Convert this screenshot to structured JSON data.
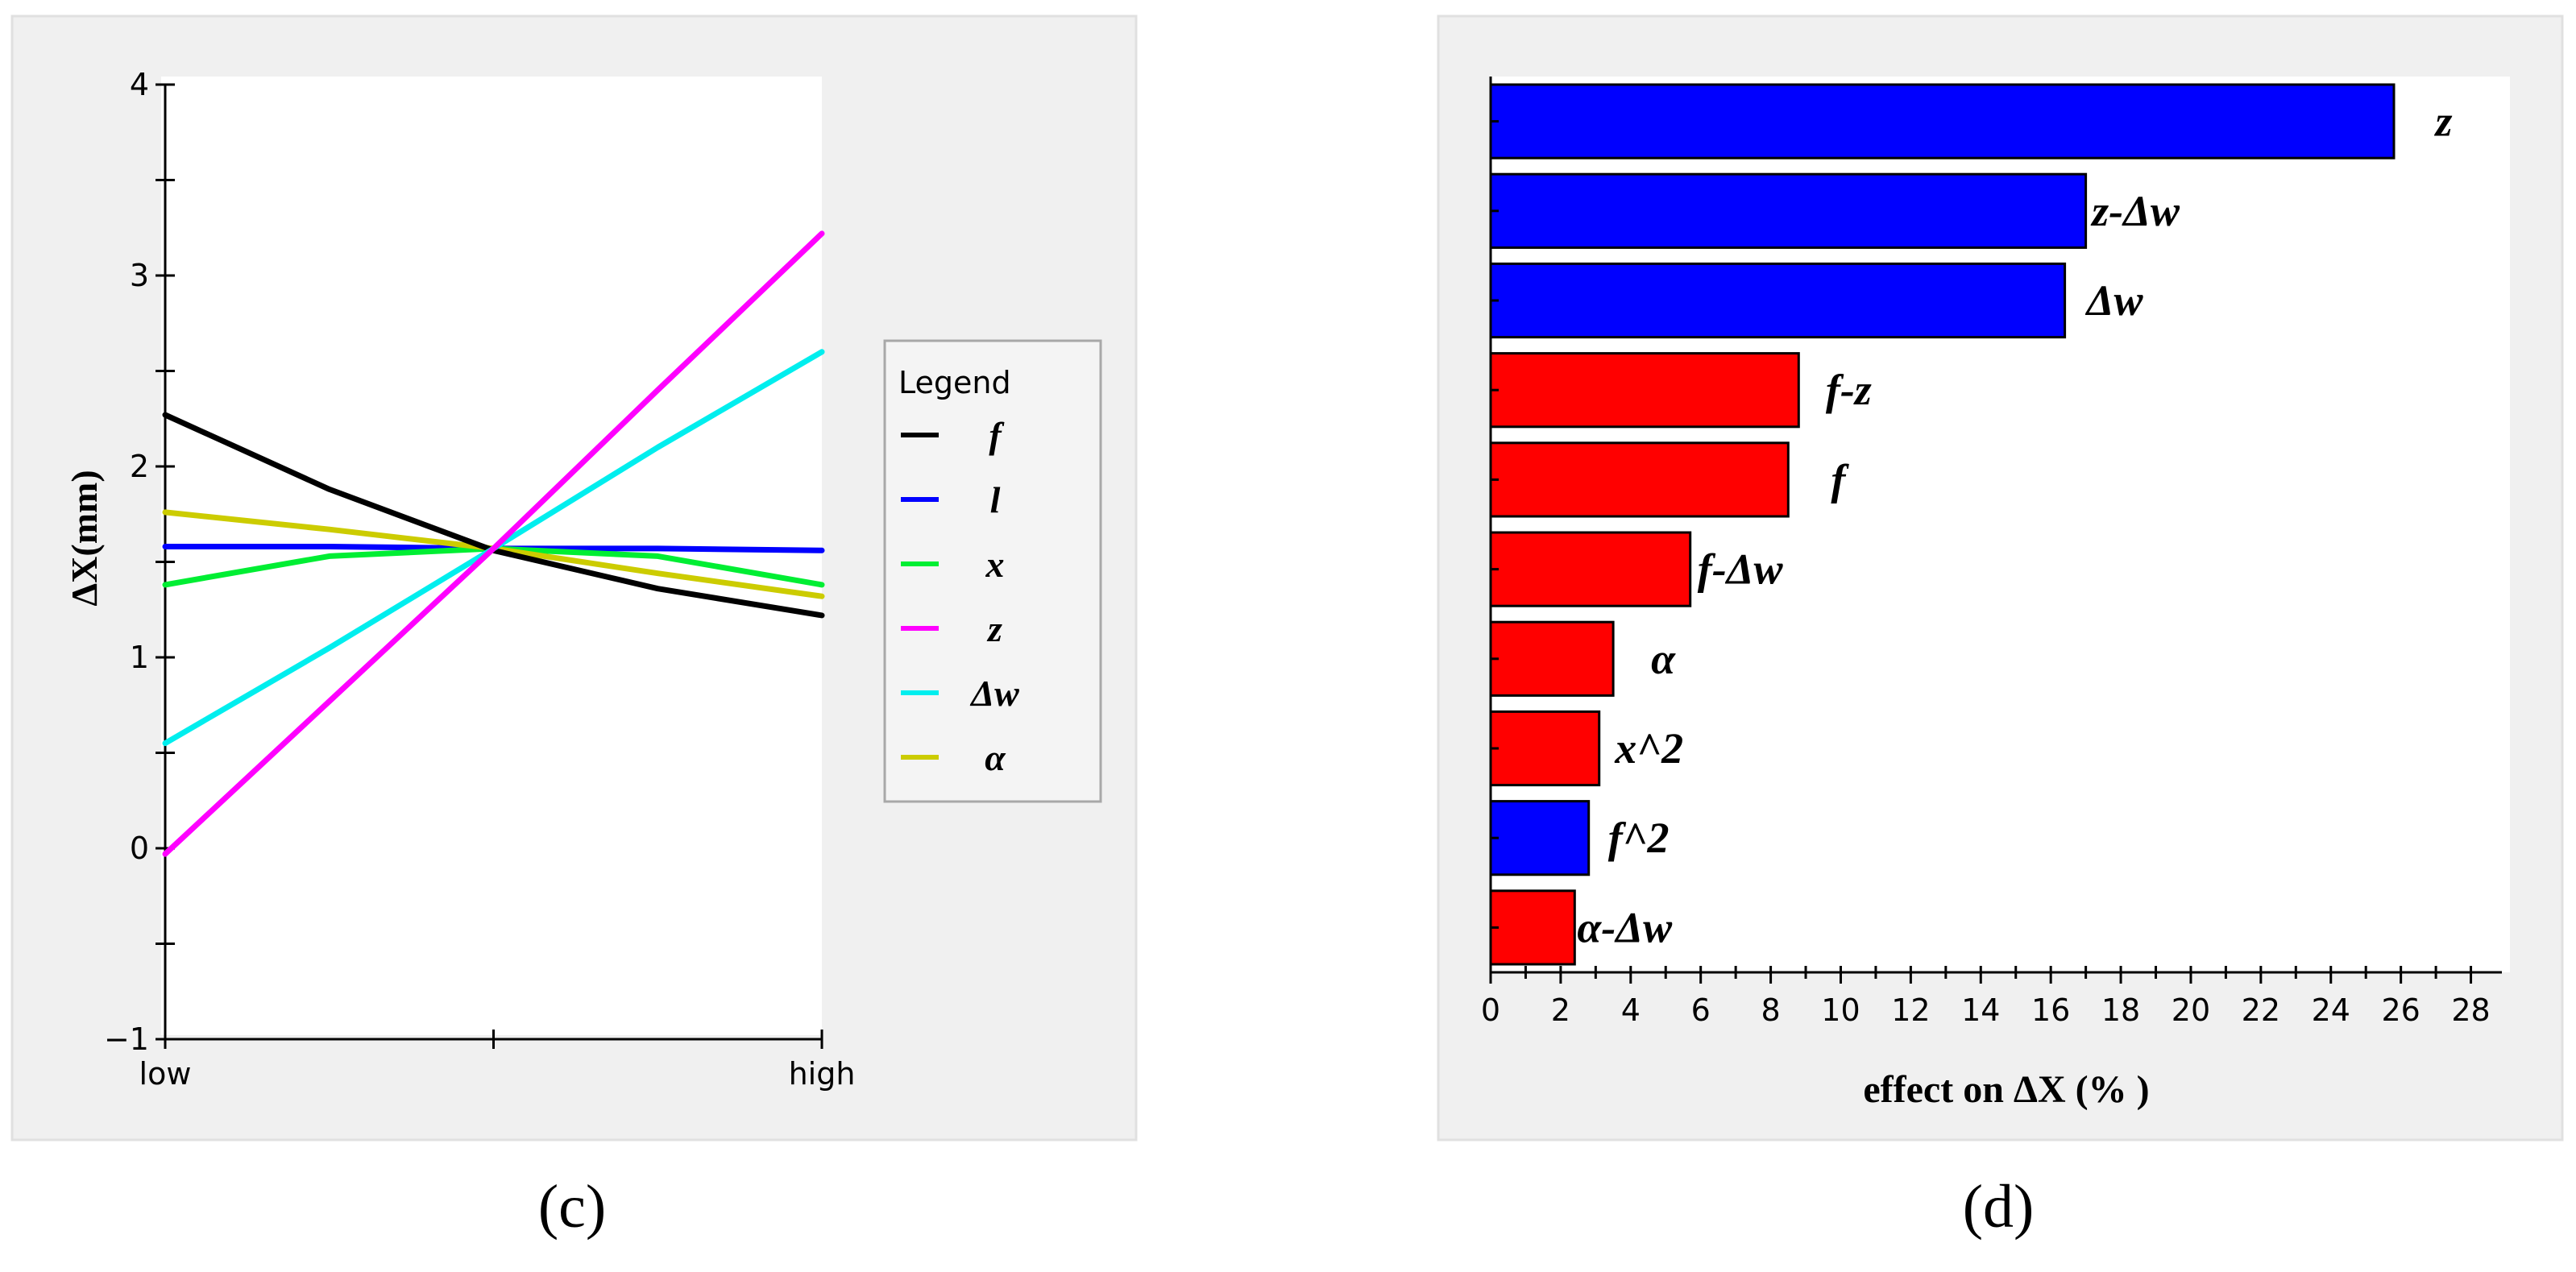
{
  "panel_labels": {
    "c": "(c)",
    "d": "(d)"
  },
  "chart_data": [
    {
      "type": "line",
      "title": "",
      "xlabel": "",
      "ylabel": "ΔX(mm)",
      "x_ticks": [
        "low",
        "high"
      ],
      "ylim": [
        -1,
        4
      ],
      "y_ticks": [
        -1,
        0,
        1,
        2,
        3,
        4
      ],
      "legend": {
        "title": "Legend",
        "position": "right"
      },
      "x": [
        0,
        0.25,
        0.5,
        0.75,
        1
      ],
      "series": [
        {
          "name": "f",
          "color": "#000000",
          "values": [
            2.27,
            1.88,
            1.56,
            1.36,
            1.22
          ]
        },
        {
          "name": "l",
          "color": "#0000ff",
          "values": [
            1.58,
            1.58,
            1.57,
            1.57,
            1.56
          ]
        },
        {
          "name": "x",
          "color": "#00ee33",
          "values": [
            1.38,
            1.53,
            1.57,
            1.53,
            1.38
          ]
        },
        {
          "name": "z",
          "color": "#ff00ff",
          "values": [
            -0.03,
            0.77,
            1.57,
            2.4,
            3.22
          ]
        },
        {
          "name": "Δw",
          "color": "#00eeee",
          "values": [
            0.55,
            1.05,
            1.57,
            2.1,
            2.6
          ]
        },
        {
          "name": "α",
          "color": "#cccc00",
          "values": [
            1.76,
            1.67,
            1.57,
            1.44,
            1.32
          ]
        }
      ]
    },
    {
      "type": "bar",
      "orientation": "horizontal",
      "title": "",
      "xlabel": "effect on ΔX (% )",
      "ylabel": "",
      "xlim": [
        0,
        29
      ],
      "x_ticks": [
        0,
        2,
        4,
        6,
        8,
        10,
        12,
        14,
        16,
        18,
        20,
        22,
        24,
        26,
        28
      ],
      "grid": false,
      "categories": [
        "z",
        "z-Δw",
        "Δw",
        "f-z",
        "f",
        "f-Δw",
        "α",
        "x^2",
        "f^2",
        "α-Δw"
      ],
      "values": [
        25.8,
        17.0,
        16.4,
        8.8,
        8.5,
        5.7,
        3.5,
        3.1,
        2.8,
        2.4
      ],
      "colors": [
        "#0000ff",
        "#0000ff",
        "#0000ff",
        "#ff0000",
        "#ff0000",
        "#ff0000",
        "#ff0000",
        "#ff0000",
        "#0000ff",
        "#ff0000"
      ]
    }
  ]
}
